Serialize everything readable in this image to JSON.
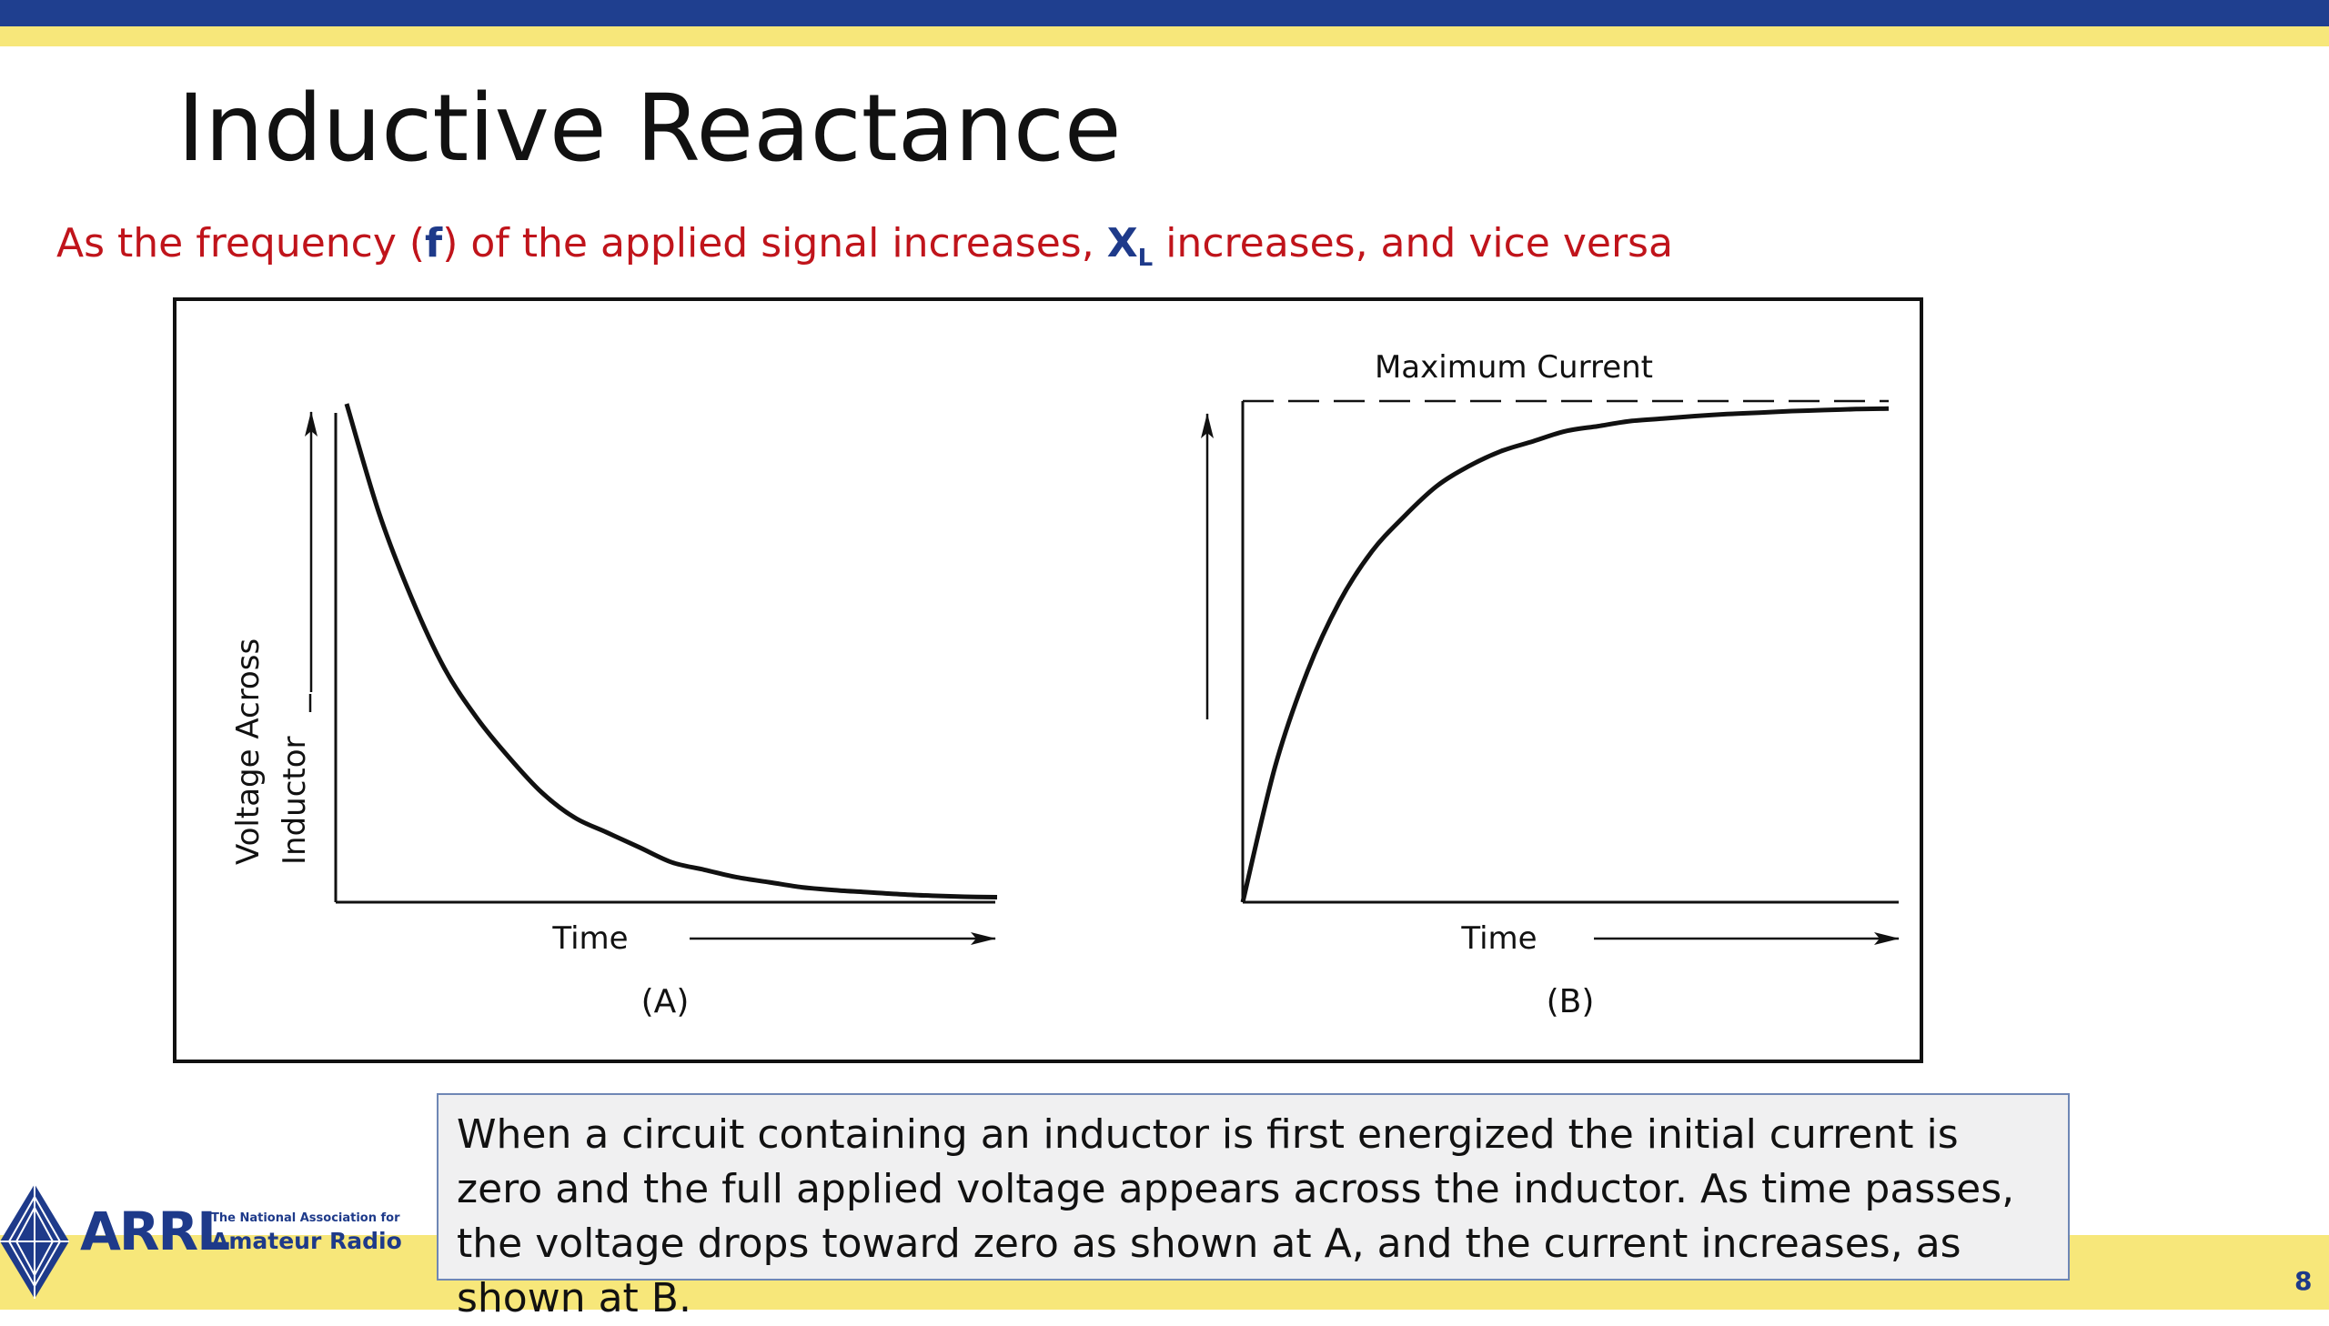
{
  "slide": {
    "title": "Inductive Reactance",
    "subtitle": {
      "part1": "As the frequency (",
      "f": "f",
      "part2": ") of the applied signal increases, ",
      "x": "X",
      "x_sub": "L",
      "part3": " increases, and vice versa"
    },
    "caption": "When a circuit containing an inductor is first energized the initial current is zero and the full applied voltage appears across the inductor. As time passes, the voltage drops toward zero as shown at A, and the current increases, as shown at B.",
    "page_number": "8"
  },
  "logo": {
    "name": "ARRL",
    "tagline_top": "The National Association for",
    "tagline_bottom": "Amateur Radio"
  },
  "colors": {
    "top_bar": "#1f3f8f",
    "accent_yellow": "#f7e77a",
    "subtitle_red": "#c0141b",
    "accent_blue": "#1e3a8a"
  },
  "chart_data": [
    {
      "type": "line",
      "panel_label": "(A)",
      "xlabel": "Time",
      "ylabel": [
        "Voltage Across",
        "Inductor"
      ],
      "curve": "exponential-decay",
      "series": [
        {
          "x": [
            0,
            0.05,
            0.1,
            0.15,
            0.2,
            0.25,
            0.3,
            0.35,
            0.4,
            0.45,
            0.5,
            0.55,
            0.6,
            0.65,
            0.7,
            0.75,
            0.8,
            0.85,
            0.9,
            0.95,
            1
          ],
          "y": [
            1,
            0.78,
            0.61,
            0.47,
            0.37,
            0.29,
            0.22,
            0.17,
            0.14,
            0.11,
            0.08,
            0.065,
            0.05,
            0.04,
            0.03,
            0.024,
            0.02,
            0.016,
            0.013,
            0.011,
            0.01
          ]
        }
      ],
      "xlim": [
        0,
        1
      ],
      "ylim": [
        0,
        1
      ]
    },
    {
      "type": "line",
      "panel_label": "(B)",
      "xlabel": "Time",
      "annotation": "Maximum Current",
      "curve": "exponential-rise",
      "series": [
        {
          "x": [
            0,
            0.05,
            0.1,
            0.15,
            0.2,
            0.25,
            0.3,
            0.35,
            0.4,
            0.45,
            0.5,
            0.55,
            0.6,
            0.65,
            0.7,
            0.75,
            0.8,
            0.85,
            0.9,
            0.95,
            1
          ],
          "y": [
            0,
            0.27,
            0.46,
            0.6,
            0.7,
            0.77,
            0.83,
            0.87,
            0.9,
            0.92,
            0.94,
            0.95,
            0.96,
            0.965,
            0.97,
            0.974,
            0.977,
            0.98,
            0.982,
            0.984,
            0.985
          ]
        }
      ],
      "max_level": 1,
      "xlim": [
        0,
        1
      ],
      "ylim": [
        0,
        1
      ]
    }
  ]
}
